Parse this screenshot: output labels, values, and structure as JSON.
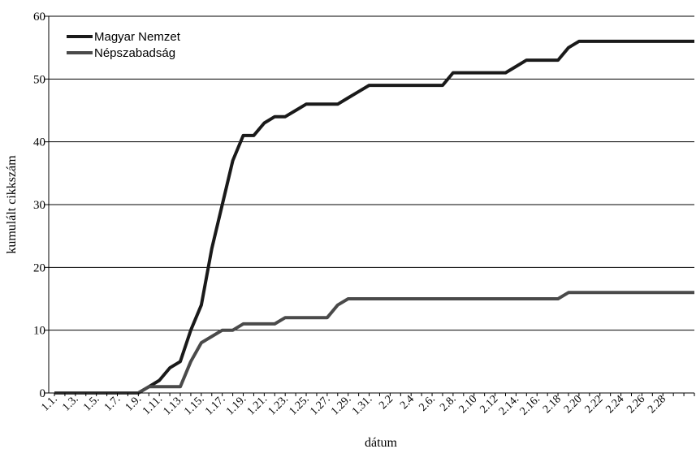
{
  "chart_data": {
    "type": "line",
    "title": "",
    "xlabel": "dátum",
    "ylabel": "kumulált cikkszám",
    "ylim": [
      0,
      60
    ],
    "yticks": [
      0,
      10,
      20,
      30,
      40,
      50,
      60
    ],
    "grid": true,
    "legend_position": "top-left",
    "x": [
      "1.1.",
      "1.2.",
      "1.3.",
      "1.4.",
      "1.5.",
      "1.6.",
      "1.7.",
      "1.8.",
      "1.9.",
      "1.10.",
      "1.11.",
      "1.12.",
      "1.13.",
      "1.14.",
      "1.15.",
      "1.16.",
      "1.17.",
      "1.18.",
      "1.19.",
      "1.20.",
      "1.21.",
      "1.22.",
      "1.23.",
      "1.24.",
      "1.25.",
      "1.26.",
      "1.27.",
      "1.28.",
      "1.29.",
      "1.30.",
      "1.31.",
      "2.1.",
      "2.2",
      "2.3",
      "2.4",
      "2.5",
      "2.6.",
      "2.7",
      "2.8.",
      "2.9",
      "2.10",
      "2.11",
      "2.12",
      "2.13",
      "2.14.",
      "2.15",
      "2.16.",
      "2.17",
      "2.18",
      "2.19",
      "2.20",
      "2.21",
      "2.22",
      "2.23",
      "2.24",
      "2.25",
      "2.26",
      "2.27",
      "2.28",
      "2.29",
      "2.30",
      "2.31"
    ],
    "x_tick_labels": [
      "1.1.",
      "1.3.",
      "1.5.",
      "1.7.",
      "1.9.",
      "1.11.",
      "1.13.",
      "1.15.",
      "1.17.",
      "1.19.",
      "1.21.",
      "1.23.",
      "1.25.",
      "1.27.",
      "1.29.",
      "1.31.",
      "2.2",
      "2.4",
      "2.6.",
      "2.8.",
      "2.10",
      "2.12",
      "2.14.",
      "2.16.",
      "2.18",
      "2.20",
      "2.22",
      "2.24",
      "2.26",
      "2.28"
    ],
    "series": [
      {
        "name": "Magyar Nemzet",
        "color": "#1a1a1a",
        "values": [
          0,
          0,
          0,
          0,
          0,
          0,
          0,
          0,
          0,
          1,
          2,
          4,
          5,
          10,
          14,
          23,
          30,
          37,
          41,
          41,
          43,
          44,
          44,
          45,
          46,
          46,
          46,
          46,
          47,
          48,
          49,
          49,
          49,
          49,
          49,
          49,
          49,
          49,
          51,
          51,
          51,
          51,
          51,
          51,
          52,
          53,
          53,
          53,
          53,
          55,
          56,
          56,
          56,
          56,
          56,
          56,
          56,
          56,
          56,
          56,
          56,
          56
        ]
      },
      {
        "name": "Népszabadság",
        "color": "#4a4a4a",
        "values": [
          0,
          0,
          0,
          0,
          0,
          0,
          0,
          0,
          0,
          1,
          1,
          1,
          1,
          5,
          8,
          9,
          10,
          10,
          11,
          11,
          11,
          11,
          12,
          12,
          12,
          12,
          12,
          14,
          15,
          15,
          15,
          15,
          15,
          15,
          15,
          15,
          15,
          15,
          15,
          15,
          15,
          15,
          15,
          15,
          15,
          15,
          15,
          15,
          15,
          16,
          16,
          16,
          16,
          16,
          16,
          16,
          16,
          16,
          16,
          16,
          16,
          16
        ]
      }
    ]
  }
}
